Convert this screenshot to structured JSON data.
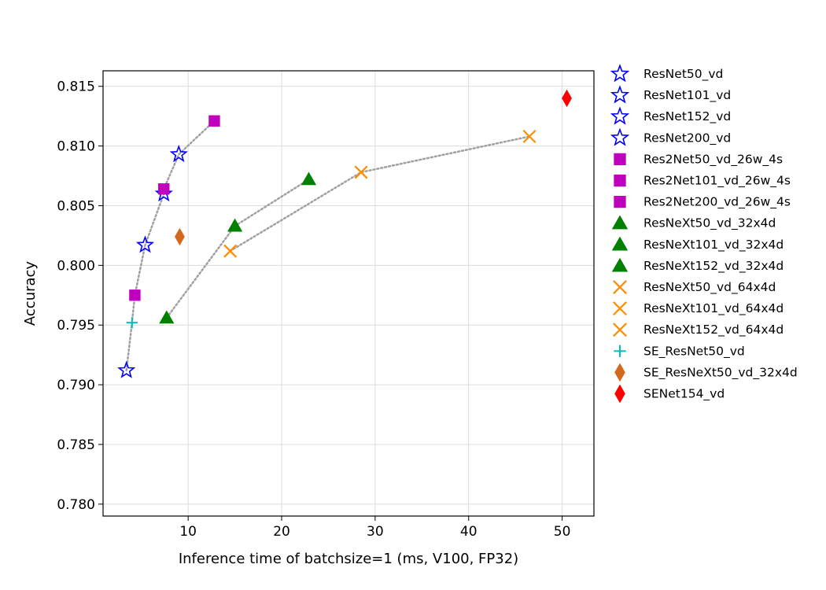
{
  "chart_data": {
    "type": "scatter",
    "title": "",
    "xlabel": "Inference time of batchsize=1 (ms, V100, FP32)",
    "ylabel": "Accuracy",
    "xlim": [
      0.9,
      53.4
    ],
    "ylim": [
      0.779,
      0.8163
    ],
    "xticks": [
      10,
      20,
      30,
      40,
      50
    ],
    "yticks": [
      0.78,
      0.785,
      0.79,
      0.795,
      0.8,
      0.805,
      0.81,
      0.815
    ],
    "grid": true,
    "legend_position": "outside-right",
    "series": [
      {
        "name": "ResNet50_vd",
        "marker": "star",
        "color": "#0000ff",
        "points": [
          [
            5.4,
            0.8017
          ]
        ]
      },
      {
        "name": "ResNet101_vd",
        "marker": "star",
        "color": "#0000ff",
        "points": [
          [
            7.4,
            0.806
          ]
        ]
      },
      {
        "name": "ResNet152_vd",
        "marker": "star",
        "color": "#0000ff",
        "points": [
          [
            9.0,
            0.8093
          ]
        ]
      },
      {
        "name": "ResNet200_vd",
        "marker": "star",
        "color": "#0000ff",
        "points": [
          [
            3.4,
            0.7912
          ]
        ]
      },
      {
        "name": "Res2Net50_vd_26w_4s",
        "marker": "square",
        "color": "#bf00bf",
        "points": [
          [
            4.3,
            0.7975
          ]
        ]
      },
      {
        "name": "Res2Net101_vd_26w_4s",
        "marker": "square",
        "color": "#bf00bf",
        "points": [
          [
            7.4,
            0.8064
          ]
        ]
      },
      {
        "name": "Res2Net200_vd_26w_4s",
        "marker": "square",
        "color": "#bf00bf",
        "points": [
          [
            12.8,
            0.8121
          ]
        ]
      },
      {
        "name": "ResNeXt50_vd_32x4d",
        "marker": "triangle",
        "color": "#008000",
        "points": [
          [
            7.7,
            0.7956
          ]
        ]
      },
      {
        "name": "ResNeXt101_vd_32x4d",
        "marker": "triangle",
        "color": "#008000",
        "points": [
          [
            15.0,
            0.8033
          ]
        ]
      },
      {
        "name": "ResNeXt152_vd_32x4d",
        "marker": "triangle",
        "color": "#008000",
        "points": [
          [
            22.9,
            0.8072
          ]
        ]
      },
      {
        "name": "ResNeXt50_vd_64x4d",
        "marker": "x",
        "color": "#ff8c00",
        "points": [
          [
            14.5,
            0.8012
          ]
        ]
      },
      {
        "name": "ResNeXt101_vd_64x4d",
        "marker": "x",
        "color": "#ff8c00",
        "points": [
          [
            28.5,
            0.8078
          ]
        ]
      },
      {
        "name": "ResNeXt152_vd_64x4d",
        "marker": "x",
        "color": "#ff8c00",
        "points": [
          [
            46.5,
            0.8108
          ]
        ]
      },
      {
        "name": "SE_ResNet50_vd",
        "marker": "plus",
        "color": "#00bfbf",
        "points": [
          [
            4.0,
            0.7952
          ]
        ]
      },
      {
        "name": "SE_ResNeXt50_vd_32x4d",
        "marker": "thin-diamond",
        "color": "#d2691e",
        "points": [
          [
            9.1,
            0.8024
          ]
        ]
      },
      {
        "name": "SENet154_vd",
        "marker": "thin-diamond",
        "color": "#ff0000",
        "points": [
          [
            50.5,
            0.814
          ]
        ]
      }
    ],
    "connector_lines": [
      {
        "style": "dotted",
        "color": "#a0a0a0",
        "points": [
          [
            3.4,
            0.7912
          ],
          [
            4.0,
            0.7952
          ],
          [
            4.3,
            0.7975
          ],
          [
            5.4,
            0.8017
          ],
          [
            7.4,
            0.806
          ],
          [
            7.4,
            0.8064
          ],
          [
            9.0,
            0.8093
          ],
          [
            12.8,
            0.8121
          ]
        ]
      },
      {
        "style": "dotted",
        "color": "#a0a0a0",
        "points": [
          [
            7.7,
            0.7956
          ],
          [
            15.0,
            0.8033
          ],
          [
            22.9,
            0.8072
          ]
        ]
      },
      {
        "style": "dotted",
        "color": "#a0a0a0",
        "points": [
          [
            14.5,
            0.8012
          ],
          [
            28.5,
            0.8078
          ],
          [
            46.5,
            0.8108
          ]
        ]
      }
    ]
  }
}
